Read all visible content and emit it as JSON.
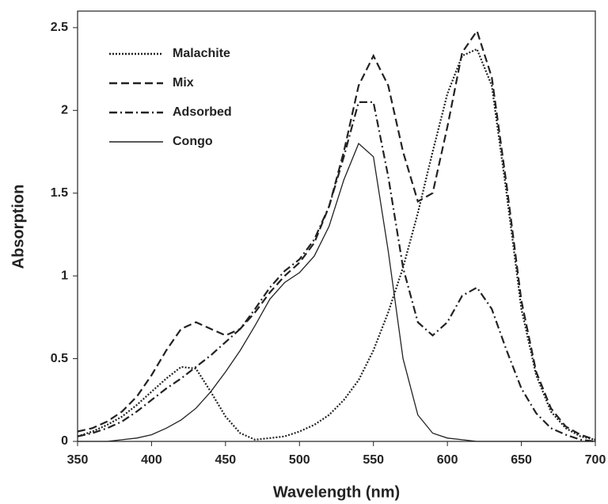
{
  "chart_data": {
    "type": "line",
    "x_label": "Wavelength (nm)",
    "y_label": "Absorption",
    "x": [
      350,
      360,
      370,
      380,
      390,
      400,
      410,
      420,
      430,
      440,
      450,
      460,
      470,
      480,
      490,
      500,
      510,
      520,
      530,
      540,
      550,
      560,
      570,
      580,
      590,
      600,
      610,
      620,
      630,
      640,
      650,
      660,
      670,
      680,
      690,
      700
    ],
    "series": [
      {
        "name": "Malachite",
        "color": "#222222",
        "dash": "dotted",
        "values": [
          0.03,
          0.06,
          0.1,
          0.15,
          0.22,
          0.3,
          0.38,
          0.45,
          0.44,
          0.3,
          0.15,
          0.05,
          0.01,
          0.02,
          0.03,
          0.06,
          0.1,
          0.16,
          0.25,
          0.37,
          0.55,
          0.78,
          1.05,
          1.38,
          1.75,
          2.1,
          2.33,
          2.37,
          2.15,
          1.5,
          0.8,
          0.4,
          0.18,
          0.08,
          0.03,
          0.01
        ]
      },
      {
        "name": "Mix",
        "color": "#222222",
        "dash": "dashed",
        "values": [
          0.06,
          0.08,
          0.12,
          0.18,
          0.27,
          0.4,
          0.55,
          0.68,
          0.72,
          0.68,
          0.64,
          0.68,
          0.78,
          0.9,
          1.0,
          1.08,
          1.2,
          1.42,
          1.75,
          2.15,
          2.33,
          2.15,
          1.75,
          1.45,
          1.5,
          1.9,
          2.35,
          2.48,
          2.2,
          1.55,
          0.85,
          0.42,
          0.2,
          0.09,
          0.04,
          0.01
        ]
      },
      {
        "name": "Adsorbed",
        "color": "#222222",
        "dash": "dashdot",
        "values": [
          0.03,
          0.05,
          0.08,
          0.12,
          0.18,
          0.25,
          0.32,
          0.38,
          0.45,
          0.52,
          0.6,
          0.68,
          0.8,
          0.93,
          1.03,
          1.1,
          1.22,
          1.42,
          1.72,
          2.05,
          2.05,
          1.6,
          1.05,
          0.72,
          0.64,
          0.72,
          0.88,
          0.93,
          0.8,
          0.55,
          0.32,
          0.17,
          0.08,
          0.04,
          0.01,
          0
        ]
      },
      {
        "name": "Congo",
        "color": "#222222",
        "dash": "solid",
        "values": [
          0,
          0,
          0,
          0.01,
          0.02,
          0.04,
          0.08,
          0.13,
          0.2,
          0.3,
          0.42,
          0.55,
          0.7,
          0.86,
          0.96,
          1.02,
          1.12,
          1.3,
          1.58,
          1.8,
          1.72,
          1.15,
          0.5,
          0.16,
          0.05,
          0.02,
          0.01,
          0,
          0,
          0,
          0,
          0,
          0,
          0,
          0,
          0
        ]
      }
    ],
    "xlim": [
      350,
      700
    ],
    "xticks": [
      350,
      400,
      450,
      500,
      550,
      600,
      650,
      700
    ],
    "ylim": [
      0,
      2.6
    ],
    "yticks": [
      0,
      0.5,
      1,
      1.5,
      2,
      2.5
    ],
    "legend": "upper-left"
  }
}
